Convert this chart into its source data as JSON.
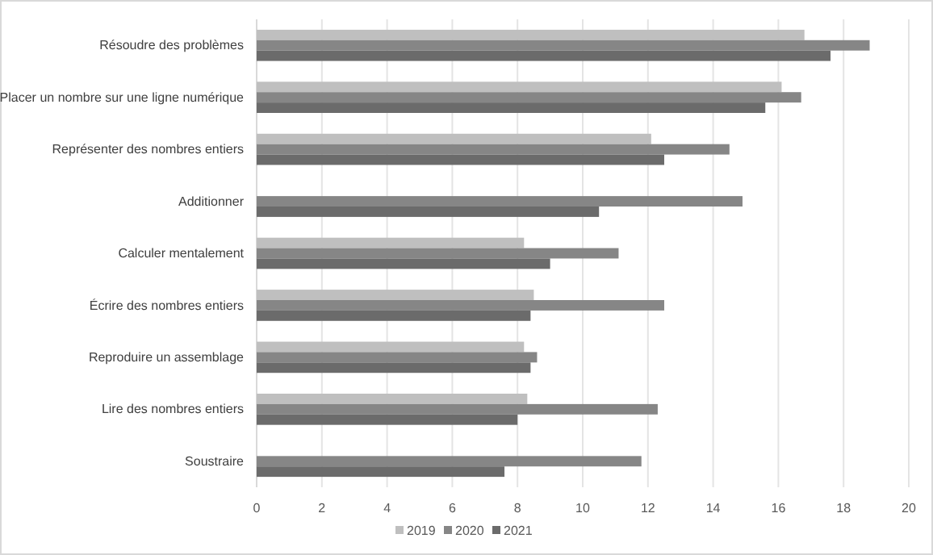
{
  "chart_data": {
    "type": "bar",
    "orientation": "horizontal",
    "categories": [
      "Résoudre des problèmes",
      "Placer un nombre sur une ligne numérique",
      "Représenter des nombres entiers",
      "Additionner",
      "Calculer mentalement",
      "Écrire des nombres entiers",
      "Reproduire un assemblage",
      "Lire des nombres entiers",
      "Soustraire"
    ],
    "series": [
      {
        "name": "2019",
        "color": "#bfbfbf",
        "values": [
          16.8,
          16.1,
          12.1,
          null,
          8.2,
          8.5,
          8.2,
          8.3,
          null
        ]
      },
      {
        "name": "2020",
        "color": "#868686",
        "values": [
          18.8,
          16.7,
          14.5,
          14.9,
          11.1,
          12.5,
          8.6,
          12.3,
          11.8
        ]
      },
      {
        "name": "2021",
        "color": "#6b6b6b",
        "values": [
          17.6,
          15.6,
          12.5,
          10.5,
          9.0,
          8.4,
          8.4,
          8.0,
          7.6
        ]
      }
    ],
    "xlim": [
      0,
      20
    ],
    "xticks": [
      0,
      2,
      4,
      6,
      8,
      10,
      12,
      14,
      16,
      18,
      20
    ],
    "grid": "x",
    "legend": "bottom"
  }
}
